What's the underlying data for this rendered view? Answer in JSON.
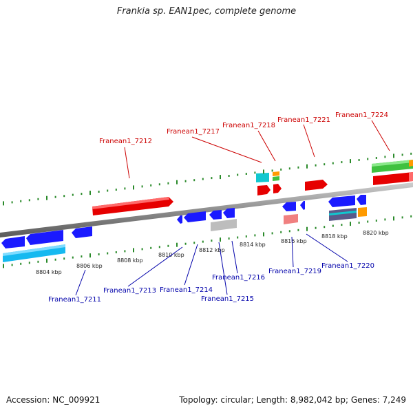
{
  "title": "Frankia sp. EAN1pec, complete genome",
  "footer": {
    "accession": "Accession: NC_009921",
    "topology": "Topology: circular; Length: 8,982,042 bp; Genes: 7,249"
  },
  "colors": {
    "backbone": "#8a8a8a",
    "upper_label": "#cc0000",
    "lower_label": "#0000aa",
    "tick": "#2a8a2a"
  },
  "scale_labels": [
    "8804 kbp",
    "8806 kbp",
    "8808 kbp",
    "8810 kbp",
    "8812 kbp",
    "8814 kbp",
    "8816 kbp",
    "8818 kbp",
    "8820 kbp"
  ],
  "upper_gene_labels": [
    "Franean1_7212",
    "Franean1_7217",
    "Franean1_7218",
    "Franean1_7221",
    "Franean1_7224"
  ],
  "lower_gene_labels": [
    "Franean1_7211",
    "Franean1_7213",
    "Franean1_7214",
    "Franean1_7215",
    "Franean1_7216",
    "Franean1_7219",
    "Franean1_7220"
  ]
}
